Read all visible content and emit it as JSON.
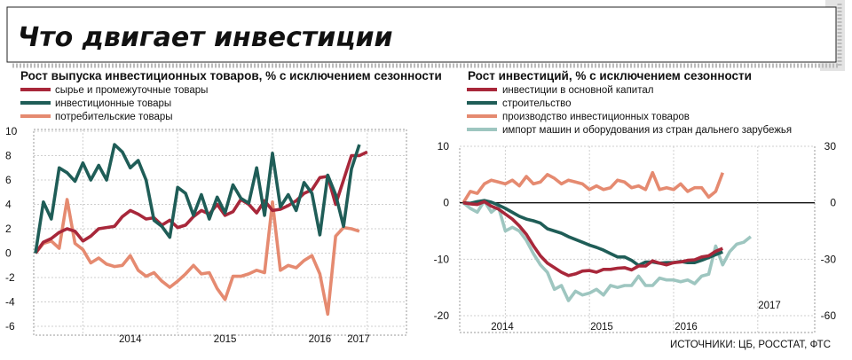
{
  "header": {
    "title": "Что двигает инвестиции"
  },
  "source": "ИСТОЧНИКИ: ЦБ, РОССТАТ, ФТС",
  "colors": {
    "red": "#a8273a",
    "teal": "#1f5d57",
    "salmon": "#e58a70",
    "lightteal": "#9ec6c0"
  },
  "chart_data": [
    {
      "type": "line",
      "title": "Рост выпуска инвестиционных товаров, % с исключением сезонности",
      "x_labels": [
        "2014",
        "2015",
        "2016",
        "2017"
      ],
      "x_start": 2013.5,
      "ylim": [
        -6,
        10
      ],
      "yticks": [
        "10",
        "8",
        "6",
        "4",
        "2",
        "0",
        "-2",
        "-4",
        "-6"
      ],
      "series": [
        {
          "name": "сырье и промежуточные товары",
          "color": "#a8273a",
          "values": [
            0,
            0.9,
            1.2,
            1.7,
            2.0,
            1.8,
            1.0,
            1.4,
            2.0,
            2.1,
            2.2,
            3.0,
            3.5,
            3.2,
            2.8,
            2.9,
            2.3,
            2.7,
            2.1,
            2.3,
            3.0,
            3.5,
            3.2,
            4.0,
            3.1,
            3.4,
            4.4,
            4.0,
            3.3,
            4.3,
            3.5,
            3.6,
            3.9,
            4.3,
            4.9,
            5.2,
            6.2,
            6.3,
            4.0,
            6.0,
            8.0,
            8.0,
            8.3
          ]
        },
        {
          "name": "инвестиционные товары",
          "color": "#1f5d57",
          "values": [
            0,
            4.2,
            2.8,
            7.0,
            6.6,
            5.9,
            7.4,
            6.0,
            7.2,
            6.0,
            8.9,
            8.3,
            7.0,
            7.6,
            6.0,
            2.7,
            2.2,
            1.3,
            5.4,
            4.9,
            3.1,
            4.8,
            2.8,
            4.6,
            3.3,
            5.6,
            4.5,
            4.1,
            7.0,
            3.1,
            8.2,
            3.8,
            4.8,
            3.5,
            5.8,
            4.9,
            1.5,
            6.4,
            4.8,
            2.2,
            6.9,
            8.9
          ]
        },
        {
          "name": "потребительские товары",
          "color": "#e58a70",
          "values": [
            0,
            0.8,
            1.0,
            0.4,
            4.4,
            0.8,
            0.3,
            -0.8,
            -0.4,
            -0.9,
            -1.1,
            -1.0,
            -0.2,
            -1.4,
            -1.9,
            -1.6,
            -2.3,
            -2.8,
            -2.3,
            -1.7,
            -1.0,
            -1.7,
            -1.6,
            -2.9,
            -3.8,
            -1.9,
            -1.9,
            -1.7,
            -1.4,
            -1.6,
            4.2,
            -1.4,
            -1.0,
            -1.2,
            -0.6,
            -0.2,
            -1.7,
            -5.0,
            1.4,
            2.1,
            2.0,
            1.8
          ]
        }
      ]
    },
    {
      "type": "line",
      "title": "Рост инвестиций, % с исключением сезонности",
      "x_labels": [
        "2014",
        "2015",
        "2016",
        "2017"
      ],
      "x_start": 2013.5,
      "ylim_left": [
        -20,
        10
      ],
      "ylim_right": [
        -60,
        30
      ],
      "yticks_left": [
        "10",
        "0",
        "-10",
        "-20"
      ],
      "yticks_right": [
        "30",
        "0",
        "-30",
        "-60"
      ],
      "series": [
        {
          "name": "инвестиции в основной капитал",
          "axis": "left",
          "color": "#a8273a",
          "values": [
            0,
            -0.2,
            -0.3,
            0.2,
            -0.6,
            -1.1,
            -2.0,
            -2.9,
            -4.1,
            -5.6,
            -7.6,
            -9.4,
            -10.7,
            -11.5,
            -12.3,
            -12.9,
            -12.6,
            -12.1,
            -12.0,
            -12.3,
            -11.8,
            -11.8,
            -11.6,
            -11.5,
            -11.9,
            -11.2,
            -11.2,
            -10.3,
            -10.7,
            -11.0,
            -10.6,
            -10.5,
            -10.2,
            -10.1,
            -9.6,
            -9.4,
            -8.6,
            -8.1
          ]
        },
        {
          "name": "строительство",
          "axis": "left",
          "color": "#1f5d57",
          "values": [
            0,
            -0.1,
            0.2,
            0.4,
            0.1,
            -0.4,
            -1.0,
            -1.7,
            -2.4,
            -2.9,
            -3.2,
            -3.6,
            -4.6,
            -5.0,
            -5.4,
            -6.0,
            -6.5,
            -7.0,
            -7.5,
            -7.9,
            -8.4,
            -9.0,
            -9.6,
            -9.6,
            -10.2,
            -11.1,
            -10.5,
            -10.5,
            -10.7,
            -10.6,
            -10.6,
            -10.4,
            -10.6,
            -10.6,
            -10.2,
            -9.7,
            -9.2,
            -8.7
          ]
        },
        {
          "name": "производство инвестиционных товаров",
          "axis": "right",
          "color": "#e58a70",
          "values": [
            0,
            6,
            5,
            10,
            12,
            11,
            10,
            12,
            9,
            14,
            10,
            11,
            15,
            13,
            10,
            12,
            11,
            10,
            7,
            9,
            7,
            8,
            12,
            11,
            8,
            9,
            7,
            16,
            7,
            8,
            7,
            10,
            6,
            8,
            8,
            3,
            6,
            16
          ]
        },
        {
          "name": "импорт машин и оборудования из стран дальнего зарубежья",
          "axis": "right",
          "color": "#9ec6c0",
          "values": [
            0,
            -3,
            -5,
            1,
            -5,
            -2,
            -15,
            -13,
            -15,
            -20,
            -27,
            -33,
            -37,
            -46,
            -44,
            -52,
            -47,
            -49,
            -48,
            -46,
            -49,
            -44,
            -45,
            -44,
            -44,
            -39,
            -44,
            -44,
            -40,
            -41,
            -41,
            -42,
            -41,
            -43,
            -39,
            -38,
            -23,
            -33,
            -26,
            -22,
            -21,
            -18
          ]
        }
      ]
    }
  ]
}
